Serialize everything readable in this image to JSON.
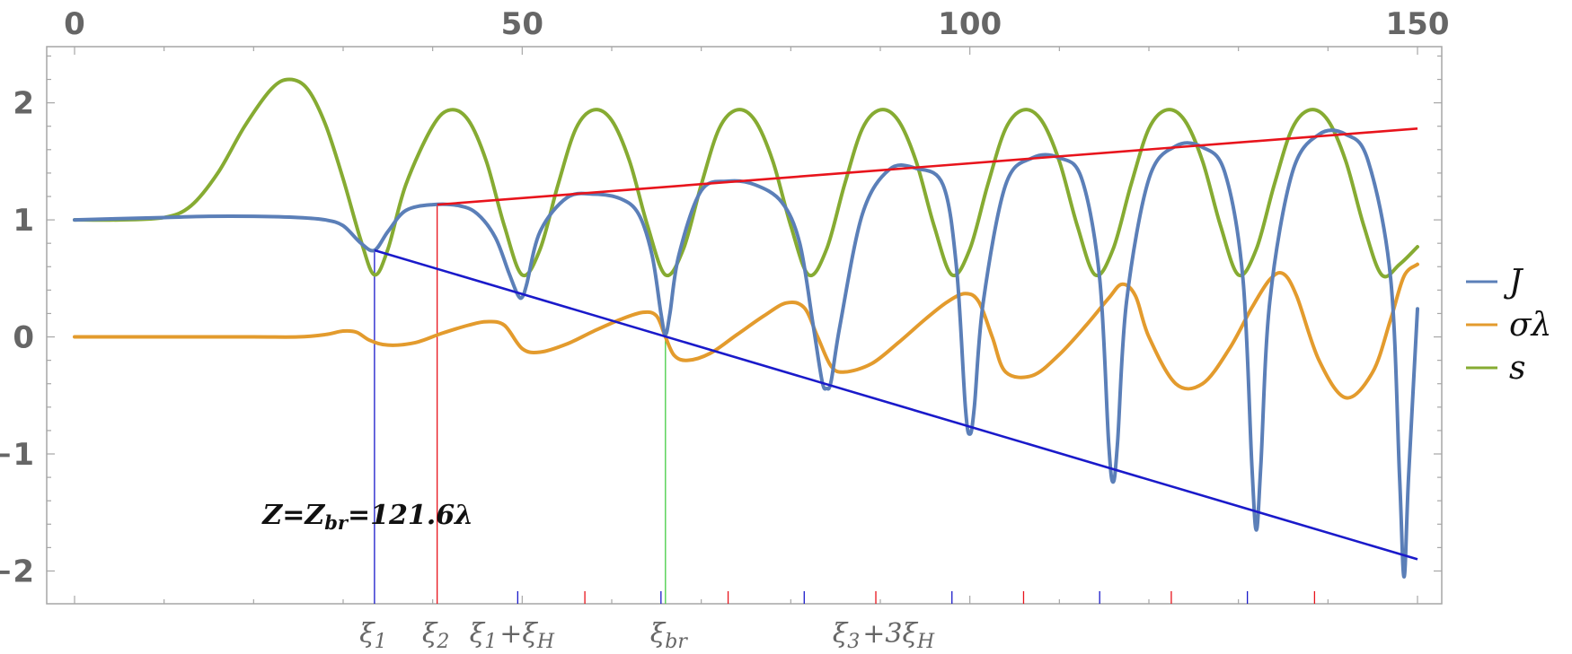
{
  "chart_data": {
    "type": "line",
    "title": "",
    "xlabel": "",
    "ylabel": "",
    "xlim": [
      0,
      150
    ],
    "ylim": [
      -2.28,
      2.48
    ],
    "grid": false,
    "legend_position": "right",
    "x_ticks": [
      0,
      50,
      100,
      150
    ],
    "y_ticks": [
      -2,
      -1,
      0,
      1,
      2
    ],
    "x_tick_labels": [
      "0",
      "50",
      "100",
      "150"
    ],
    "y_tick_labels": [
      "-2",
      "-1",
      "0",
      "1",
      "2"
    ],
    "colors": {
      "J": "#5b7fb8",
      "sigma_lambda": "#e39b2d",
      "s": "#86ab32",
      "red_line": "#e8141c",
      "blue_line": "#1a1aca",
      "green_marker": "#44cc44"
    },
    "series": [
      {
        "name": "J",
        "color": "#5b7fb8",
        "x": [
          0,
          5,
          10,
          15,
          20,
          25,
          28,
          30,
          32,
          33.5,
          35,
          37,
          40,
          43,
          45,
          47,
          48.5,
          49.5,
          50,
          50.5,
          52,
          55,
          58,
          61,
          63,
          64.5,
          65.5,
          66,
          66.5,
          67.5,
          70,
          73,
          76,
          79,
          81,
          82.5,
          83.5,
          84,
          84.5,
          85.5,
          88,
          91,
          94,
          97,
          98.5,
          99.5,
          100,
          100.5,
          101.5,
          104,
          107,
          110,
          112.5,
          114.5,
          115.5,
          116,
          116.5,
          117.5,
          120,
          123,
          126,
          128.5,
          130.5,
          131.5,
          132,
          132.5,
          133.5,
          136,
          139,
          142,
          144.5,
          147,
          148,
          148.5,
          149,
          150
        ],
        "values": [
          1.0,
          1.01,
          1.02,
          1.03,
          1.03,
          1.02,
          1.0,
          0.95,
          0.8,
          0.74,
          0.9,
          1.08,
          1.13,
          1.12,
          1.05,
          0.85,
          0.55,
          0.36,
          0.34,
          0.45,
          0.9,
          1.19,
          1.22,
          1.18,
          1.05,
          0.7,
          0.2,
          0.02,
          0.2,
          0.7,
          1.25,
          1.33,
          1.3,
          1.15,
          0.8,
          0.1,
          -0.38,
          -0.44,
          -0.38,
          0.1,
          1.05,
          1.43,
          1.44,
          1.3,
          0.6,
          -0.6,
          -0.83,
          -0.6,
          0.3,
          1.3,
          1.53,
          1.53,
          1.35,
          0.5,
          -0.9,
          -1.24,
          -0.9,
          0.3,
          1.35,
          1.63,
          1.62,
          1.4,
          0.5,
          -1.1,
          -1.65,
          -1.1,
          0.3,
          1.4,
          1.73,
          1.73,
          1.5,
          0.5,
          -1.2,
          -2.05,
          -1.2,
          0.24
        ]
      },
      {
        "name": "σλ",
        "color": "#e39b2d",
        "x": [
          0,
          10,
          20,
          25,
          28,
          30,
          31.5,
          33,
          35,
          38,
          41,
          44,
          46,
          48,
          50,
          52,
          55,
          58,
          61,
          63.5,
          65,
          66,
          67,
          68.5,
          71,
          74,
          77,
          79.5,
          81.5,
          83,
          84.5,
          86,
          89,
          92,
          95,
          97.5,
          99.5,
          101,
          102.5,
          104,
          107,
          110,
          113,
          115.5,
          117,
          118.5,
          120,
          123,
          126,
          129,
          131.5,
          133.5,
          135,
          136.5,
          139,
          142,
          145,
          147,
          148.5,
          150
        ],
        "values": [
          0.0,
          0.0,
          0.0,
          0.0,
          0.02,
          0.05,
          0.04,
          -0.03,
          -0.07,
          -0.05,
          0.03,
          0.1,
          0.13,
          0.1,
          -0.1,
          -0.13,
          -0.06,
          0.05,
          0.15,
          0.21,
          0.18,
          0.0,
          -0.16,
          -0.2,
          -0.14,
          0.02,
          0.18,
          0.29,
          0.25,
          0.0,
          -0.25,
          -0.3,
          -0.23,
          -0.05,
          0.15,
          0.3,
          0.37,
          0.3,
          0.0,
          -0.3,
          -0.33,
          -0.15,
          0.1,
          0.33,
          0.45,
          0.35,
          0.0,
          -0.4,
          -0.4,
          -0.1,
          0.25,
          0.49,
          0.54,
          0.35,
          -0.2,
          -0.52,
          -0.3,
          0.15,
          0.52,
          0.62
        ]
      },
      {
        "name": "s",
        "color": "#86ab32",
        "x": [
          0,
          5,
          10,
          13,
          16,
          19,
          22,
          24,
          26,
          28,
          30,
          32,
          33.5,
          35,
          37,
          40,
          42,
          44,
          46,
          48,
          50,
          52,
          54,
          56,
          58,
          60,
          62,
          64,
          66,
          68,
          70,
          72,
          74,
          76,
          78,
          80,
          82,
          84,
          86,
          88,
          90,
          92,
          94,
          96,
          98,
          100,
          102,
          104,
          106,
          108,
          110,
          112,
          114,
          116,
          118,
          120,
          122,
          124,
          126,
          128,
          130,
          132,
          134,
          136,
          138,
          140,
          142,
          144,
          146,
          148,
          150
        ],
        "values": [
          1.0,
          1.0,
          1.02,
          1.12,
          1.4,
          1.8,
          2.12,
          2.2,
          2.12,
          1.82,
          1.35,
          0.82,
          0.53,
          0.75,
          1.3,
          1.8,
          1.94,
          1.85,
          1.5,
          0.95,
          0.53,
          0.75,
          1.3,
          1.78,
          1.94,
          1.85,
          1.5,
          0.95,
          0.53,
          0.75,
          1.3,
          1.78,
          1.94,
          1.85,
          1.5,
          0.95,
          0.53,
          0.75,
          1.3,
          1.78,
          1.94,
          1.85,
          1.5,
          0.95,
          0.53,
          0.75,
          1.3,
          1.78,
          1.94,
          1.85,
          1.5,
          0.95,
          0.53,
          0.75,
          1.3,
          1.78,
          1.94,
          1.85,
          1.5,
          0.95,
          0.53,
          0.75,
          1.3,
          1.78,
          1.94,
          1.85,
          1.5,
          0.95,
          0.53,
          0.62,
          0.77
        ]
      }
    ],
    "reference_lines": [
      {
        "color": "#e8141c",
        "x": [
          40.5,
          150
        ],
        "values": [
          1.13,
          1.78
        ]
      },
      {
        "color": "#1a1aca",
        "x": [
          33.5,
          150
        ],
        "values": [
          0.74,
          -1.9
        ]
      }
    ],
    "vertical_markers": [
      {
        "color": "#1a1aca",
        "x": 33.5,
        "top": 0.74
      },
      {
        "color": "#e8141c",
        "x": 40.5,
        "top": 1.13
      },
      {
        "color": "#44cc44",
        "x": 66,
        "top": 0.0
      }
    ],
    "bottom_ticks": [
      {
        "x": 49.5,
        "color": "#1a1aca"
      },
      {
        "x": 57,
        "color": "#e8141c"
      },
      {
        "x": 65.5,
        "color": "#1a1aca"
      },
      {
        "x": 73,
        "color": "#e8141c"
      },
      {
        "x": 81.5,
        "color": "#1a1aca"
      },
      {
        "x": 89.5,
        "color": "#e8141c"
      },
      {
        "x": 98,
        "color": "#1a1aca"
      },
      {
        "x": 106,
        "color": "#e8141c"
      },
      {
        "x": 114.5,
        "color": "#1a1aca"
      },
      {
        "x": 122.5,
        "color": "#e8141c"
      },
      {
        "x": 131,
        "color": "#1a1aca"
      },
      {
        "x": 138.5,
        "color": "#e8141c"
      }
    ],
    "xi_labels": [
      {
        "x": 33.5,
        "text": "ξ1"
      },
      {
        "x": 40.5,
        "text": "ξ2"
      },
      {
        "x": 49.0,
        "text": "ξ1+ξH"
      },
      {
        "x": 66.5,
        "text": "ξbr"
      },
      {
        "x": 90.5,
        "text": "ξ3+3ξH"
      }
    ],
    "annotations": [
      {
        "text": "Z=Zbr=121.6λ",
        "x": 21,
        "y": -1.52
      }
    ]
  }
}
